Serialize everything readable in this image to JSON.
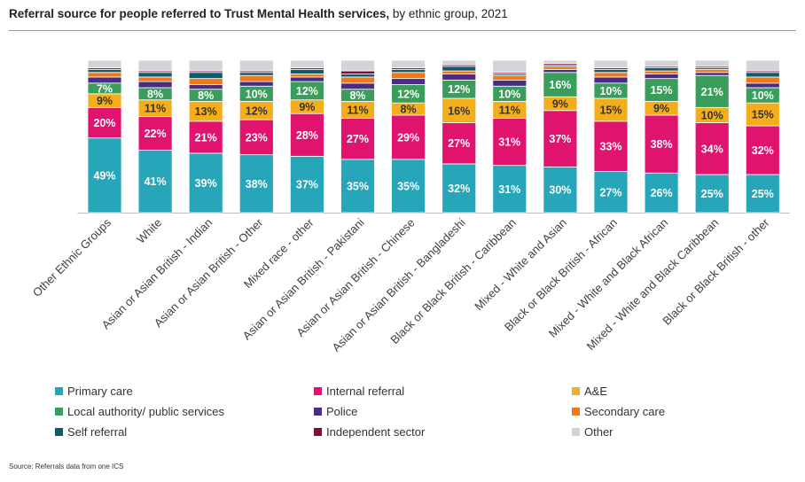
{
  "title": {
    "bold": "Referral source for people referred to Trust Mental Health services,",
    "rest": " by ethnic group, 2021"
  },
  "source": "Source: Referrals data from one ICS",
  "chart_data": {
    "type": "bar",
    "stacked": true,
    "normalized_percent": true,
    "ylim": [
      0,
      100
    ],
    "grid": false,
    "legend_position": "bottom",
    "categories": [
      "Other Ethnic Groups",
      "White",
      "Asian or Asian British - Indian",
      "Asian or Asian British - Other",
      "Mixed race - other",
      "Asian or Asian British - Pakistani",
      "Asian or Asian British - Chinese",
      "Asian or Asian British - Bangladeshi",
      "Black or Black British - Caribbean",
      "Mixed - White and Asian",
      "Black or Black British - African",
      "Mixed - White and Black African",
      "Mixed - White and Black Caribbean",
      "Black or Black British - other"
    ],
    "series": [
      {
        "name": "Primary care",
        "color": "#26a6b8",
        "values": [
          49,
          41,
          39,
          38,
          37,
          35,
          35,
          32,
          31,
          30,
          27,
          26,
          25,
          25
        ]
      },
      {
        "name": "Internal referral",
        "color": "#e0136e",
        "values": [
          20,
          22,
          21,
          23,
          28,
          27,
          29,
          27,
          31,
          37,
          33,
          38,
          34,
          32
        ]
      },
      {
        "name": "A&E",
        "color": "#f5ae1b",
        "values": [
          9,
          11,
          13,
          12,
          9,
          11,
          8,
          16,
          11,
          9,
          15,
          9,
          10,
          15
        ]
      },
      {
        "name": "Local authority/ public services",
        "color": "#3a9d5b",
        "values": [
          7,
          8,
          8,
          10,
          12,
          8,
          12,
          12,
          10,
          16,
          10,
          15,
          21,
          10
        ]
      },
      {
        "name": "Police",
        "color": "#4a2d82",
        "values": [
          4,
          4,
          3,
          3,
          3,
          4,
          4,
          4,
          4,
          2,
          4,
          3,
          2,
          3
        ]
      },
      {
        "name": "Secondary care",
        "color": "#ec7a1c",
        "values": [
          3,
          3,
          4,
          4,
          2,
          4,
          4,
          2,
          3,
          2,
          3,
          2,
          2,
          4
        ]
      },
      {
        "name": "Self referral",
        "color": "#0f5a6b",
        "values": [
          2,
          3,
          4,
          2,
          3,
          2,
          2,
          3,
          1,
          1,
          2,
          2,
          1,
          3
        ]
      },
      {
        "name": "Independent sector",
        "color": "#7d0f3a",
        "values": [
          1,
          1,
          1,
          1,
          1,
          2,
          1,
          1,
          1,
          1,
          1,
          1,
          1,
          1
        ]
      },
      {
        "name": "Other",
        "color": "#d4d4d8",
        "values": [
          5,
          7,
          7,
          7,
          5,
          7,
          5,
          3,
          8,
          2,
          5,
          4,
          4,
          7
        ]
      }
    ],
    "labeled_series": [
      "Primary care",
      "Internal referral",
      "A&E",
      "Local authority/ public services"
    ]
  }
}
